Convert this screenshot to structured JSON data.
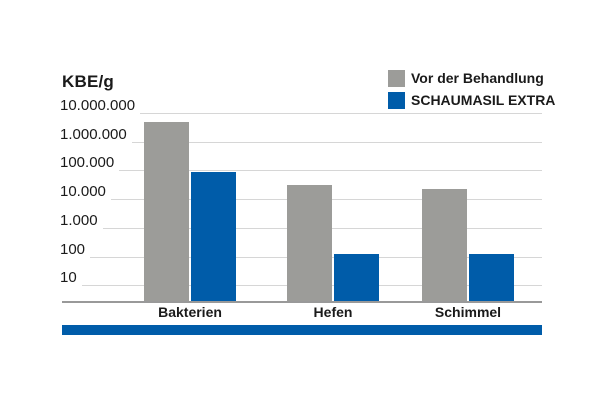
{
  "chart_data": {
    "type": "bar",
    "title": "KBE/g",
    "y_scale": "log10",
    "grid": true,
    "legend_position": "top-right",
    "categories": [
      "Bakterien",
      "Hefen",
      "Schimmel"
    ],
    "series": [
      {
        "name": "Vor der Behandlung",
        "color_key": "gray",
        "values": [
          5000000,
          30000,
          22000
        ]
      },
      {
        "name": "SCHAUMASIL EXTRA",
        "color_key": "blue",
        "values": [
          90000,
          120,
          120
        ]
      }
    ],
    "y_ticks": [
      {
        "value": 10000000,
        "label": "10.000.000"
      },
      {
        "value": 1000000,
        "label": "1.000.000"
      },
      {
        "value": 100000,
        "label": "100.000"
      },
      {
        "value": 10000,
        "label": "10.000"
      },
      {
        "value": 1000,
        "label": "1.000"
      },
      {
        "value": 100,
        "label": "100"
      },
      {
        "value": 10,
        "label": "10"
      }
    ],
    "ylim": [
      10,
      10000000
    ]
  },
  "colors": {
    "bar_gray": "#9c9c99",
    "bar_blue": "#005ca9",
    "gridline": "#d6d6d6",
    "axis_line": "#999999",
    "accent_bar": "#005ca9",
    "text": "#1a1a1a",
    "background": "#ffffff"
  }
}
